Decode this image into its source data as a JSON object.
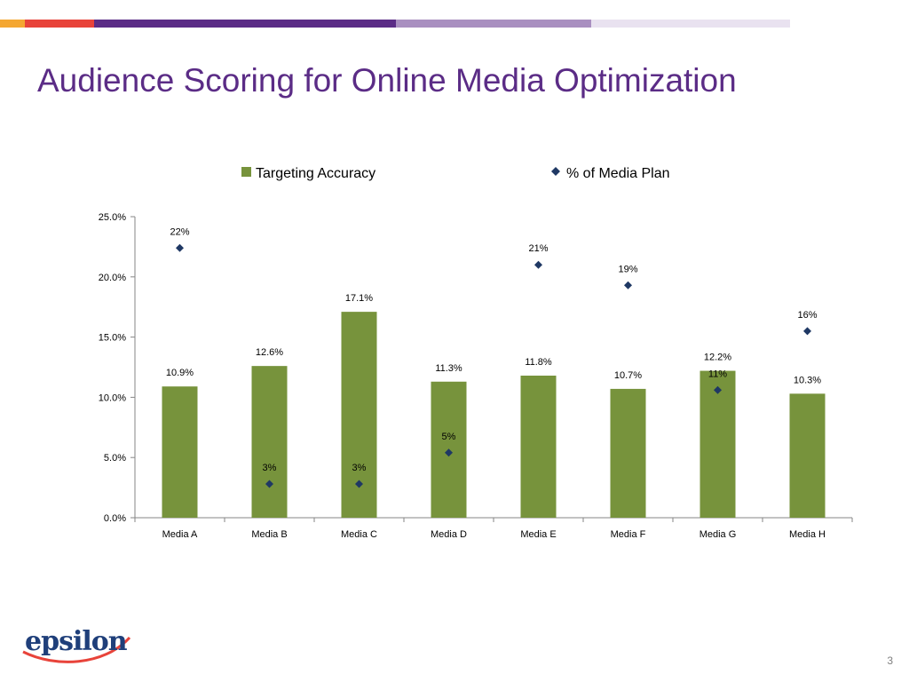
{
  "slide": {
    "title": "Audience Scoring for Online Media Optimization",
    "page_number": "3",
    "logo_text": "epsilon"
  },
  "colors": {
    "title": "#5b2c86",
    "bar": "#77933c",
    "marker": "#1f3864",
    "top_bar": [
      "#f4a732",
      "#e8433a",
      "#5b2c86",
      "#a98fc0",
      "#e9e2f0"
    ]
  },
  "chart_data": {
    "type": "bar",
    "categories": [
      "Media A",
      "Media B",
      "Media C",
      "Media D",
      "Media E",
      "Media F",
      "Media G",
      "Media H"
    ],
    "series": [
      {
        "name": "Targeting Accuracy",
        "type": "bar",
        "values": [
          10.9,
          12.6,
          17.1,
          11.3,
          11.8,
          10.7,
          12.2,
          10.3
        ],
        "labels": [
          "10.9%",
          "12.6%",
          "17.1%",
          "11.3%",
          "11.8%",
          "10.7%",
          "12.2%",
          "10.3%"
        ]
      },
      {
        "name": "% of Media Plan",
        "type": "scatter",
        "marker": "diamond",
        "values": [
          22.4,
          2.8,
          2.8,
          5.4,
          21.0,
          19.3,
          10.6,
          15.5
        ],
        "labels": [
          "22%",
          "3%",
          "3%",
          "5%",
          "21%",
          "19%",
          "11%",
          "16%"
        ]
      }
    ],
    "ylim": [
      0,
      25
    ],
    "yticks": [
      "0.0%",
      "5.0%",
      "10.0%",
      "15.0%",
      "20.0%",
      "25.0%"
    ],
    "xlabel": "",
    "ylabel": "",
    "grid": false,
    "legend_position": "top"
  }
}
